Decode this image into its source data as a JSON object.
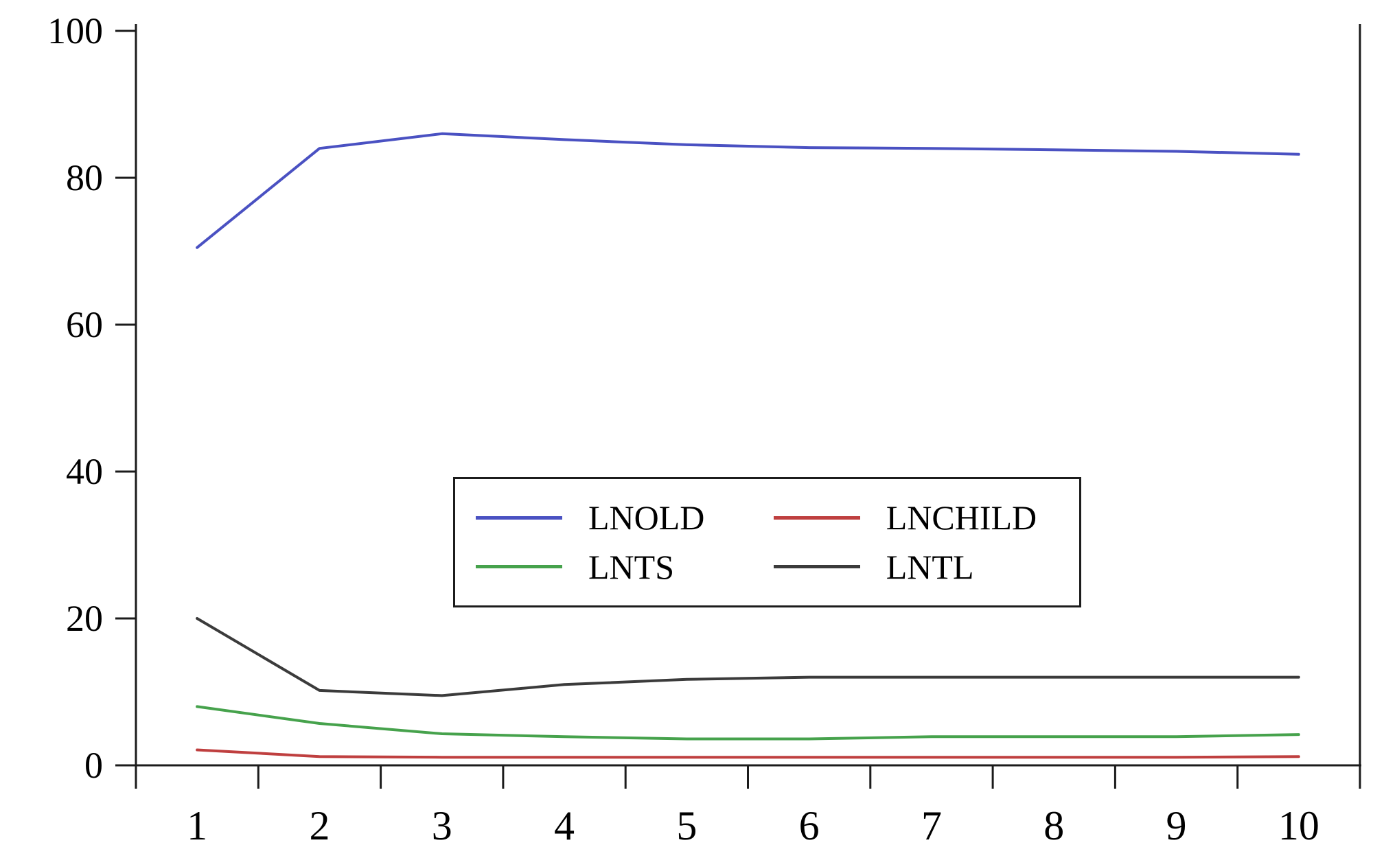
{
  "chart_data": {
    "type": "line",
    "title": "",
    "xlabel": "",
    "ylabel": "",
    "x": [
      1,
      2,
      3,
      4,
      5,
      6,
      7,
      8,
      9,
      10
    ],
    "xticks": [
      1,
      2,
      3,
      4,
      5,
      6,
      7,
      8,
      9,
      10
    ],
    "yticks": [
      0,
      20,
      40,
      60,
      80,
      100
    ],
    "ylim": [
      0,
      100
    ],
    "xlim_band": [
      0.5,
      10.5
    ],
    "grid": false,
    "legend_position": "center-inside-box",
    "legend_columns": 2,
    "series": [
      {
        "name": "LNOLD",
        "color": "#4a51c2",
        "values": [
          70.5,
          84.0,
          86.0,
          85.2,
          84.5,
          84.1,
          84.0,
          83.8,
          83.6,
          83.2
        ]
      },
      {
        "name": "LNCHILD",
        "color": "#bf3f3f",
        "values": [
          2.1,
          1.2,
          1.1,
          1.1,
          1.1,
          1.1,
          1.1,
          1.1,
          1.1,
          1.2
        ]
      },
      {
        "name": "LNTS",
        "color": "#46a24c",
        "values": [
          8.0,
          5.7,
          4.3,
          3.9,
          3.6,
          3.6,
          3.9,
          3.9,
          3.9,
          4.2
        ]
      },
      {
        "name": "LNTL",
        "color": "#3b3b3b",
        "values": [
          20.0,
          10.2,
          9.5,
          11.0,
          11.7,
          12.0,
          12.0,
          12.0,
          12.0,
          12.0
        ]
      }
    ]
  },
  "colors": {
    "background": "#ffffff",
    "axis": "#1b1b1b",
    "text": "#000000",
    "legend_border": "#1c1c1c"
  }
}
